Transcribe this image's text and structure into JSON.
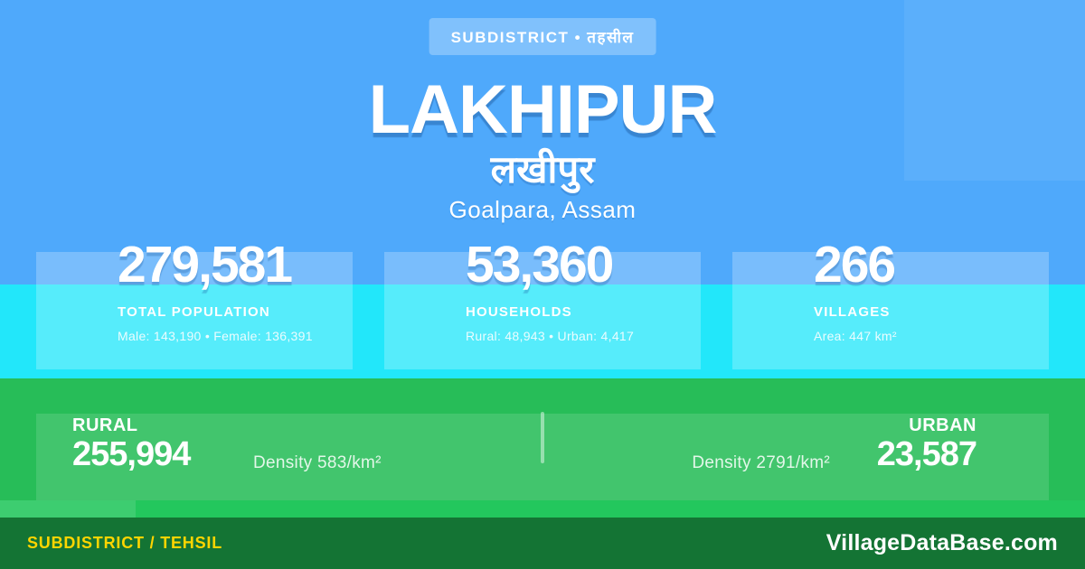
{
  "badge": {
    "label": "SUBDISTRICT • तहसील"
  },
  "header": {
    "title": "LAKHIPUR",
    "title_native": "लखीपुर",
    "location": "Goalpara, Assam"
  },
  "stats": [
    {
      "value": "279,581",
      "label": "TOTAL POPULATION",
      "detail": "Male: 143,190 • Female: 136,391"
    },
    {
      "value": "53,360",
      "label": "HOUSEHOLDS",
      "detail": "Rural: 48,943 • Urban: 4,417"
    },
    {
      "value": "266",
      "label": "VILLAGES",
      "detail": "Area: 447 km²"
    }
  ],
  "breakdown": {
    "rural": {
      "label": "RURAL",
      "value": "255,994",
      "density": "Density 583/km²"
    },
    "urban": {
      "label": "URBAN",
      "value": "23,587",
      "density": "Density 2791/km²"
    }
  },
  "footer": {
    "type_label": "SUBDISTRICT / TEHSIL",
    "brand": "VillageDataBase.com"
  },
  "colors": {
    "hero_blue": "#4FA9FB",
    "stats_cyan": "#22E7FA",
    "band_green": "#27BD58",
    "footer_green": "#147434",
    "accent_yellow": "#FFD500",
    "badge_blue": "#80C1FC"
  }
}
